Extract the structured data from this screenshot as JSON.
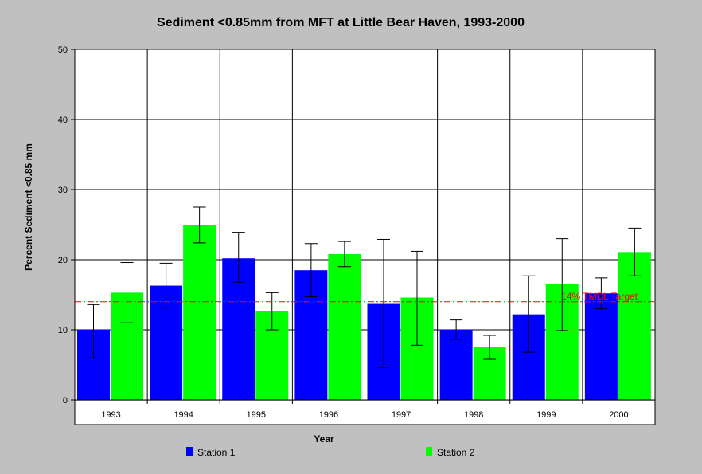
{
  "chart_data": {
    "type": "bar",
    "title": "Sediment <0.85mm from MFT at Little Bear Haven, 1993-2000",
    "xlabel": "Year",
    "ylabel": "Percent Sediment <0.85 mm",
    "ylim": [
      0,
      50
    ],
    "yticks": [
      0,
      10,
      20,
      30,
      40,
      50
    ],
    "grid": true,
    "categories": [
      "1993",
      "1994",
      "1995",
      "1996",
      "1997",
      "1998",
      "1999",
      "2000"
    ],
    "series": [
      {
        "name": "Station 1",
        "color": "#0000ff",
        "values": [
          10.0,
          16.3,
          20.2,
          18.5,
          13.8,
          10.0,
          12.2,
          15.2
        ],
        "error_low": [
          6.0,
          13.1,
          16.8,
          14.7,
          4.6,
          8.6,
          6.8,
          13.0
        ],
        "error_high": [
          13.6,
          19.5,
          23.9,
          22.3,
          22.9,
          11.4,
          17.7,
          17.4
        ]
      },
      {
        "name": "Station 2",
        "color": "#00ff00",
        "values": [
          15.3,
          25.0,
          12.7,
          20.8,
          14.6,
          7.5,
          16.5,
          21.1
        ],
        "error_low": [
          11.0,
          22.4,
          10.0,
          19.0,
          7.8,
          5.8,
          9.9,
          17.7
        ],
        "error_high": [
          19.6,
          27.5,
          15.3,
          22.6,
          21.2,
          9.2,
          23.0,
          24.5
        ]
      }
    ],
    "reference_line": {
      "value": 14,
      "label": "14% TMDL Target",
      "color": "#ff0000"
    },
    "legend_position": "bottom"
  }
}
